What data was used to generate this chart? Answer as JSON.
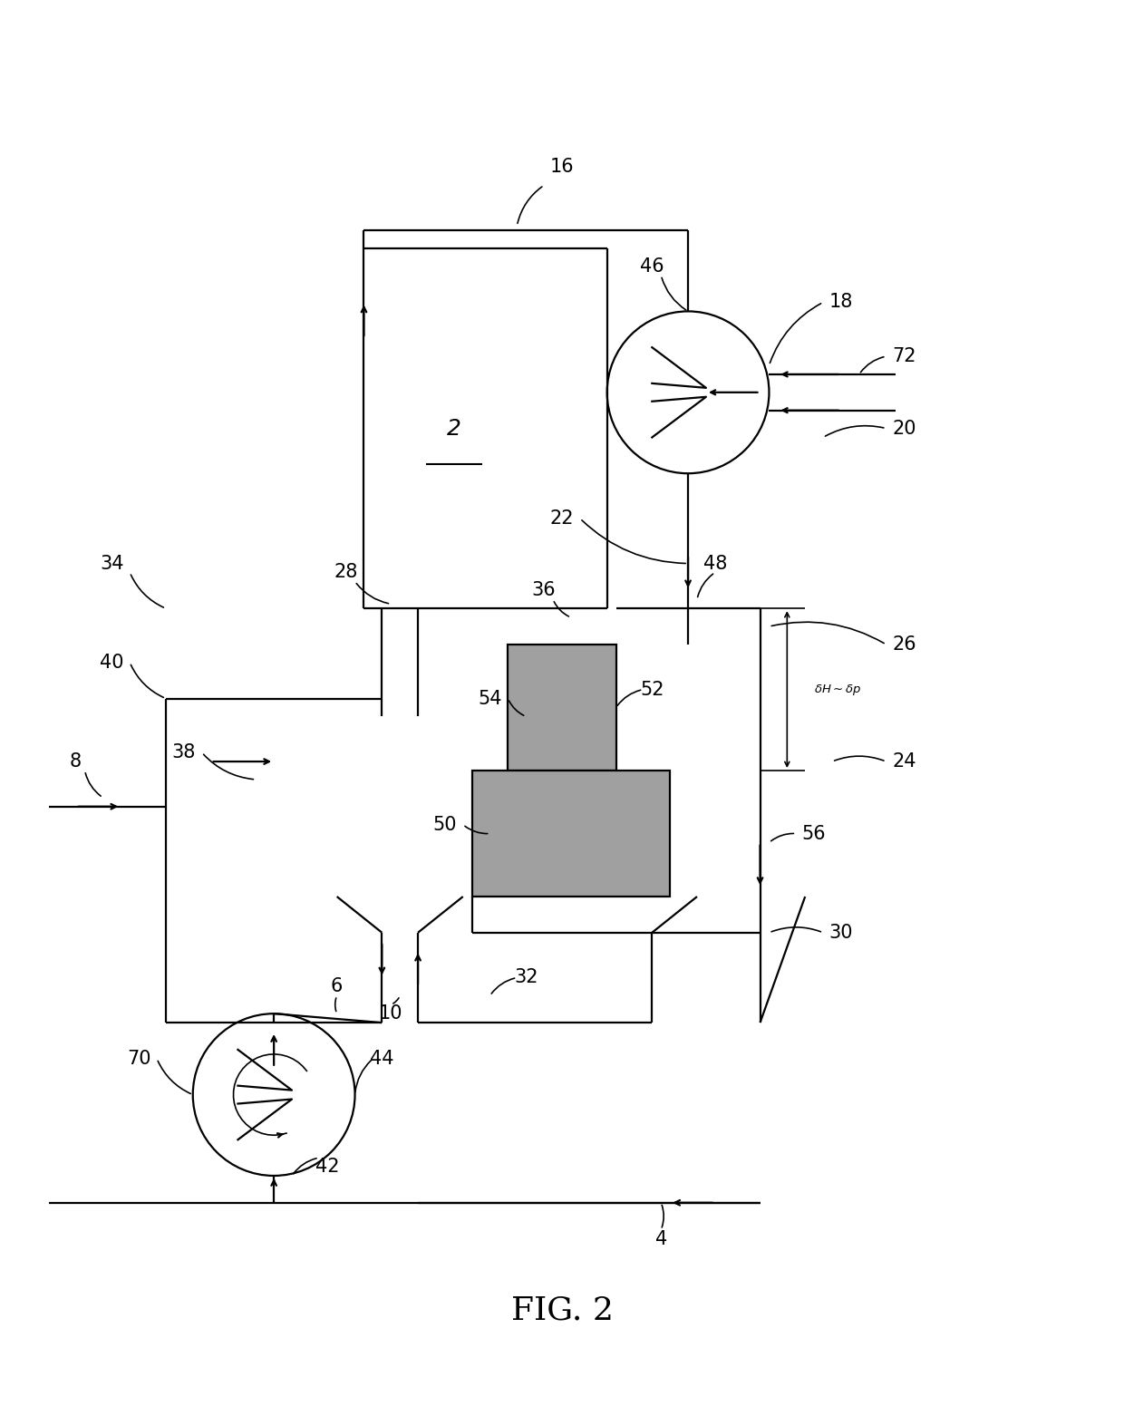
{
  "bg_color": "#ffffff",
  "line_color": "#000000",
  "gray_fill": "#a0a0a0",
  "fig_width": 12.4,
  "fig_height": 15.51,
  "title": "FIG. 2"
}
